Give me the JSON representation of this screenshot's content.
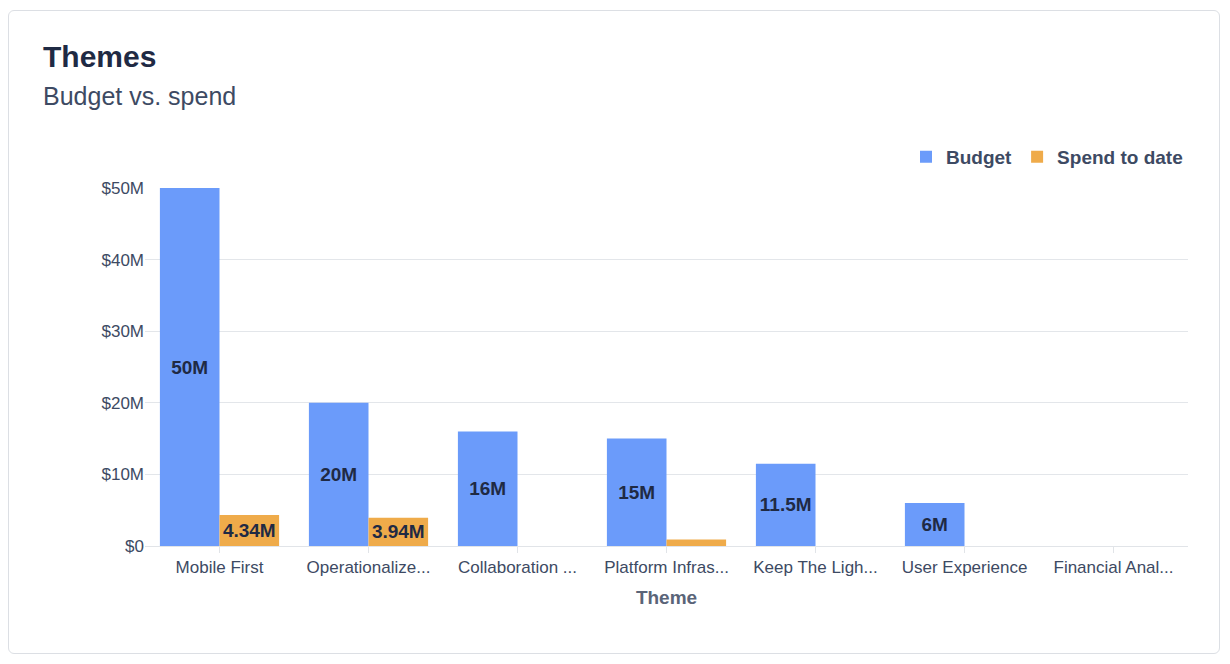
{
  "chart_data": {
    "type": "bar",
    "title": "Themes",
    "subtitle": "Budget vs. spend",
    "x_label": "Theme",
    "categories": [
      "Mobile First",
      "Operationalize...",
      "Collaboration ...",
      "Platform Infras...",
      "Keep The Ligh...",
      "User Experience",
      "Financial Anal..."
    ],
    "series": [
      {
        "name": "Budget",
        "color": "#6b9bfa",
        "values": [
          50,
          20,
          16,
          15,
          11.5,
          6,
          null
        ],
        "value_labels": [
          "50M",
          "20M",
          "16M",
          "15M",
          "11.5M",
          "6M",
          null
        ]
      },
      {
        "name": "Spend to date",
        "color": "#efab4a",
        "values": [
          4.34,
          3.94,
          0,
          0.9,
          0,
          0,
          0
        ],
        "value_labels": [
          "4.34M",
          "3.94M",
          null,
          null,
          null,
          null,
          null
        ]
      }
    ],
    "ylim": [
      0,
      50
    ],
    "yticks": [
      {
        "value": 0,
        "label": "$0"
      },
      {
        "value": 10,
        "label": "$10M"
      },
      {
        "value": 20,
        "label": "$20M"
      },
      {
        "value": 30,
        "label": "$30M"
      },
      {
        "value": 40,
        "label": "$40M"
      },
      {
        "value": 50,
        "label": "$50M"
      }
    ],
    "grid": true,
    "legend": "top-right",
    "data_labels": true
  }
}
